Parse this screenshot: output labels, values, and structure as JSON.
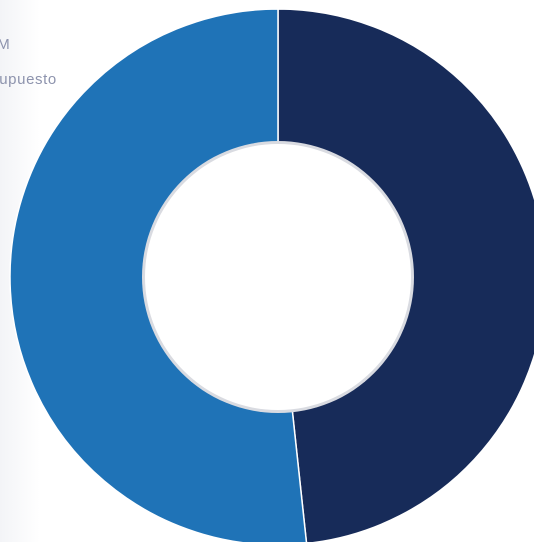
{
  "chart_data": {
    "type": "pie",
    "donut": true,
    "legend": {
      "placement": "top-left",
      "entries": [
        "MICM",
        "Presupuesto"
      ]
    },
    "slices": [
      {
        "label": "MICM",
        "value": 48.3,
        "color": "#172b59"
      },
      {
        "label": "Presupuesto",
        "value": 51.7,
        "color": "#1f73b7"
      }
    ],
    "start_angle_deg": 0,
    "title": ""
  }
}
